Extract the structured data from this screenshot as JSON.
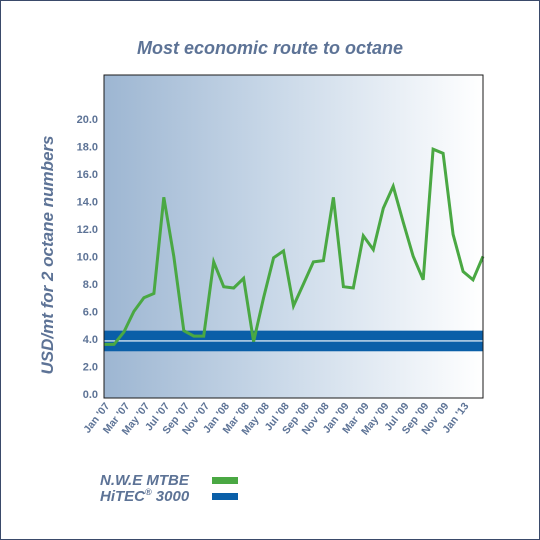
{
  "chart_data": {
    "type": "line",
    "title": "Most economic route to octane",
    "ylabel": "USD/mt for 2 octane numbers",
    "xlabel": "",
    "ylim": [
      -0.3,
      23.2
    ],
    "yticks": [
      0.0,
      2.0,
      4.0,
      6.0,
      8.0,
      10.0,
      12.0,
      14.0,
      16.0,
      18.0,
      20.0
    ],
    "ytick_labels": [
      "0.0",
      "2.0",
      "4.0",
      "6.0",
      "8.0",
      "10.0",
      "12.0",
      "14.0",
      "16.0",
      "18.0",
      "20.0"
    ],
    "x_tick_labels": [
      "Jan '07",
      "Mar '07",
      "May '07",
      "Jul '07",
      "Sep '07",
      "Nov '07",
      "Jan '08",
      "Mar '08",
      "May '08",
      "Jul '08",
      "Sep '08",
      "Nov '08",
      "Jan '09",
      "Mar '09",
      "May '09",
      "Jul '09",
      "Sep '09",
      "Nov '09",
      "Jan '13"
    ],
    "grid": false,
    "legend_position": "bottom-left",
    "series": [
      {
        "name": "N.W.E MTBE",
        "color": "#4aa843",
        "values": [
          3.6,
          3.6,
          4.5,
          6.0,
          7.0,
          7.3,
          14.3,
          10.0,
          4.6,
          4.2,
          4.2,
          9.6,
          7.8,
          7.7,
          8.4,
          3.8,
          7.0,
          9.9,
          10.4,
          6.4,
          8.0,
          9.6,
          9.7,
          14.3,
          7.8,
          7.7,
          11.5,
          10.5,
          13.5,
          15.1,
          12.5,
          10.0,
          8.3,
          17.8,
          17.5,
          11.6,
          8.9,
          8.3,
          10.0
        ]
      },
      {
        "name": "HiTEC® 3000",
        "color": "#0a5fa8",
        "band": [
          3.1,
          4.6
        ]
      }
    ]
  },
  "legend": {
    "items": [
      {
        "label": "N.W.E MTBE",
        "color": "#4aa843"
      },
      {
        "label": "HiTEC® 3000",
        "color": "#0a5fa8"
      }
    ]
  }
}
